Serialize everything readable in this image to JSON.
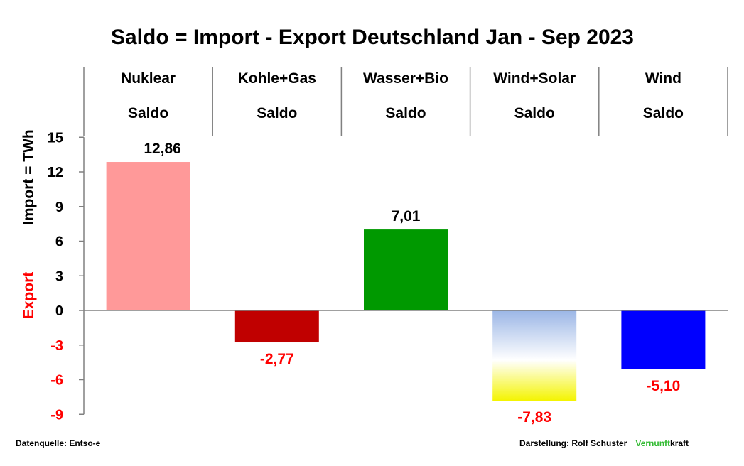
{
  "chart_data": {
    "type": "bar",
    "title": "Saldo = Import - Export Deutschland Jan - Sep 2023",
    "ylabel_positive": "Import =  TWh",
    "ylabel_negative": "Export",
    "categories": [
      {
        "line1": "Nuklear",
        "line2": "Saldo"
      },
      {
        "line1": "Kohle+Gas",
        "line2": "Saldo"
      },
      {
        "line1": "Wasser+Bio",
        "line2": "Saldo"
      },
      {
        "line1": "Wind+Solar",
        "line2": "Saldo"
      },
      {
        "line1": "Wind",
        "line2": "Saldo"
      }
    ],
    "values": [
      12.86,
      -2.77,
      7.01,
      -7.83,
      -5.1
    ],
    "value_labels": [
      "12,86",
      "-2,77",
      "7,01",
      "-7,83",
      "-5,10"
    ],
    "bar_colors": [
      "#ff9999",
      "#c00000",
      "#009900",
      "gradient-blue-yellow",
      "#0000ff"
    ],
    "label_colors": [
      "#000000",
      "#ff0000",
      "#000000",
      "#ff0000",
      "#ff0000"
    ],
    "yticks": [
      15,
      12,
      9,
      6,
      3,
      0,
      -3,
      -6,
      -9
    ],
    "ylim": [
      -9,
      15
    ],
    "grid": false
  },
  "footer": {
    "source": "Datenquelle: Entso-e",
    "author": "Darstellung:  Rolf Schuster",
    "brand_green": "Vernunft",
    "brand_black": "kraft",
    "brand_color": "#33bb33"
  }
}
